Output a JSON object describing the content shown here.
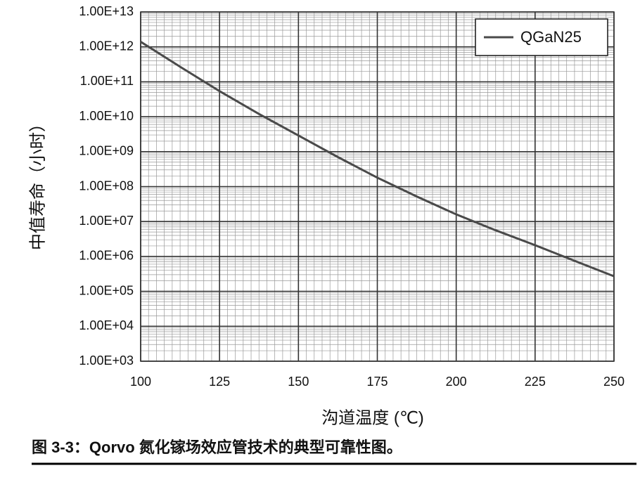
{
  "chart_data": {
    "type": "line",
    "log_y": true,
    "grid": true,
    "legend": "top-right",
    "caption": "图 3-3：Qorvo 氮化镓场效应管技术的典型可靠性图。",
    "xlabel": "沟道温度 (℃)",
    "ylabel": "中值寿命（小时）",
    "xlim": [
      100,
      250
    ],
    "xticks": [
      100,
      125,
      150,
      175,
      200,
      225,
      250
    ],
    "ylim": [
      1000,
      10000000000000
    ],
    "yticks": [
      {
        "value": 1000,
        "label": "1.00E+03"
      },
      {
        "value": 10000,
        "label": "1.00E+04"
      },
      {
        "value": 100000,
        "label": "1.00E+05"
      },
      {
        "value": 1000000,
        "label": "1.00E+06"
      },
      {
        "value": 10000000,
        "label": "1.00E+07"
      },
      {
        "value": 100000000,
        "label": "1.00E+08"
      },
      {
        "value": 1000000000,
        "label": "1.00E+09"
      },
      {
        "value": 10000000000,
        "label": "1.00E+10"
      },
      {
        "value": 100000000000,
        "label": "1.00E+11"
      },
      {
        "value": 1000000000000,
        "label": "1.00E+12"
      },
      {
        "value": 10000000000000,
        "label": "1.00E+13"
      }
    ],
    "x": [
      100,
      112.5,
      125,
      137.5,
      150,
      162.5,
      175,
      187.5,
      200,
      212.5,
      225,
      237.5,
      250
    ],
    "series": [
      {
        "name": "QGaN25",
        "color": "#4a4a4a",
        "values": [
          1400000000000,
          270000000000,
          54000000000,
          12000000000,
          2900000000,
          700000000,
          180000000,
          52000000,
          16000000,
          5600000,
          2100000,
          750000,
          270000
        ]
      }
    ]
  }
}
